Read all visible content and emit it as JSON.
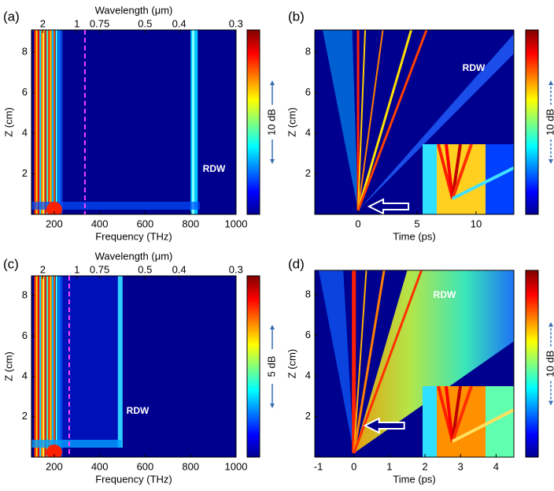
{
  "panels": [
    {
      "label": "(a)",
      "type": "spectral",
      "top_axis_label": "Wavelength (μm)",
      "top_ticks": [
        2,
        1,
        0.75,
        0.5,
        0.4,
        0.3
      ],
      "xlabel": "Frequency (THz)",
      "xlim": [
        100,
        1000
      ],
      "xticks": [
        200,
        400,
        600,
        800,
        1000
      ],
      "ylabel": "Z (cm)",
      "ylim": [
        0,
        9.1
      ],
      "yticks": [
        2,
        4,
        6,
        8
      ],
      "colorbar_label": "10 dB",
      "annotation": "RDW",
      "dashed_line": 335
    },
    {
      "label": "(b)",
      "type": "temporal",
      "xlabel": "Time (ps)",
      "xlim": [
        -3.67,
        13.2
      ],
      "xticks": [
        0,
        5,
        10
      ],
      "ylabel": "Z (cm)",
      "ylim": [
        0,
        9.1
      ],
      "yticks": [
        2,
        4,
        6,
        8
      ],
      "colorbar_label": "10 dB",
      "annotation": "RDW"
    },
    {
      "label": "(c)",
      "type": "spectral",
      "top_axis_label": "Wavelength (μm)",
      "top_ticks": [
        2,
        1,
        0.75,
        0.5,
        0.4,
        0.3
      ],
      "xlabel": "Frequency (THz)",
      "xlim": [
        100,
        1000
      ],
      "xticks": [
        200,
        400,
        600,
        800,
        1000
      ],
      "ylabel": "Z (cm)",
      "ylim": [
        0,
        8.98
      ],
      "yticks": [
        2,
        4,
        6,
        8
      ],
      "colorbar_label": "5 dB",
      "annotation": "RDW",
      "dashed_line": 266
    },
    {
      "label": "(d)",
      "type": "temporal",
      "xlabel": "Time (ps)",
      "xlim": [
        -1.1,
        4.5
      ],
      "xticks": [
        -1,
        0,
        1,
        2,
        3,
        4
      ],
      "ylabel": "Z (cm)",
      "ylim": [
        0,
        9.2
      ],
      "yticks": [
        2,
        4,
        6,
        8
      ],
      "colorbar_label": "10 dB",
      "annotation": "RDW"
    }
  ]
}
